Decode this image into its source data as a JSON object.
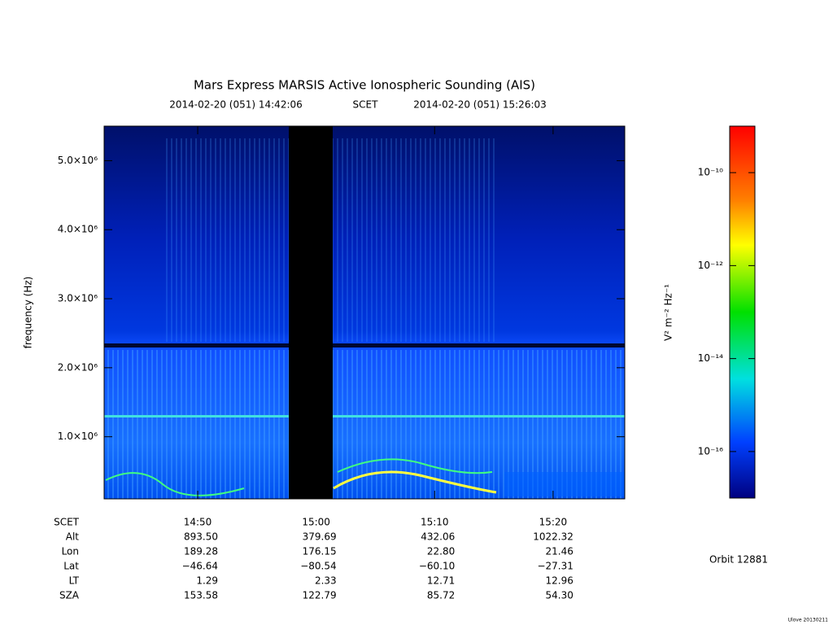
{
  "chart_data": {
    "type": "spectrogram",
    "title": "Mars Express MARSIS Active Ionospheric Sounding (AIS)",
    "subtitle": {
      "start": "2014-02-20 (051) 14:42:06",
      "scale": "SCET",
      "end": "2014-02-20 (051) 15:26:03"
    },
    "y_label": "frequency (Hz)",
    "ylim": [
      100000,
      5500000
    ],
    "yticks": [
      {
        "value": 1000000,
        "label": "1.0×10⁶"
      },
      {
        "value": 2000000,
        "label": "2.0×10⁶"
      },
      {
        "value": 3000000,
        "label": "3.0×10⁶"
      },
      {
        "value": 4000000,
        "label": "4.0×10⁶"
      },
      {
        "value": 5000000,
        "label": "5.0×10⁶"
      }
    ],
    "colorbar": {
      "label": "V² m⁻² Hz⁻¹",
      "log_scale": true,
      "lim": [
        1e-17,
        1e-09
      ],
      "ticks": [
        {
          "value": 1e-16,
          "label": "10⁻¹⁶"
        },
        {
          "value": 1e-14,
          "label": "10⁻¹⁴"
        },
        {
          "value": 1e-12,
          "label": "10⁻¹²"
        },
        {
          "value": 1e-10,
          "label": "10⁻¹⁰"
        }
      ]
    },
    "ephemeris": [
      {
        "label": "SCET",
        "values": [
          "14:50",
          "15:00",
          "15:10",
          "15:20"
        ]
      },
      {
        "label": "Alt",
        "values": [
          "893.50",
          "379.69",
          "432.06",
          "1022.32"
        ]
      },
      {
        "label": "Lon",
        "values": [
          "189.28",
          "176.15",
          "22.80",
          "21.46"
        ]
      },
      {
        "label": "Lat",
        "values": [
          "−46.64",
          "−80.54",
          "−60.10",
          "−27.31"
        ]
      },
      {
        "label": "LT",
        "values": [
          "1.29",
          "2.33",
          "12.71",
          "12.96"
        ]
      },
      {
        "label": "SZA",
        "values": [
          "153.58",
          "122.79",
          "85.72",
          "54.30"
        ]
      }
    ],
    "orbit": "Orbit 12881",
    "version": "Ulove 20130211"
  }
}
